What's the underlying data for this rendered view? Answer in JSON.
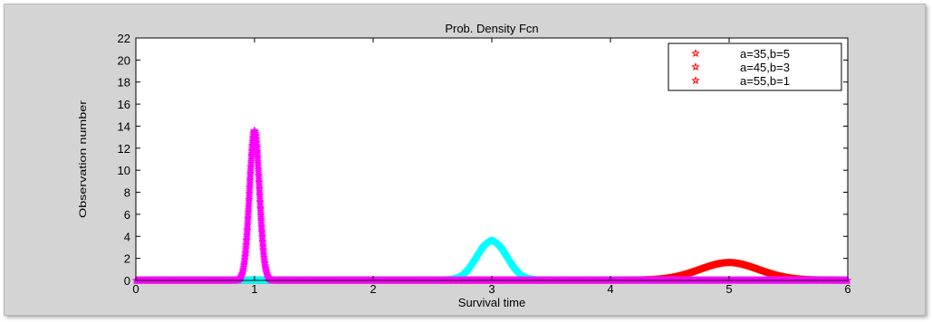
{
  "chart_data": {
    "type": "scatter",
    "title": "Prob. Density Fcn",
    "xlabel": "Survival time",
    "ylabel": "Observation number",
    "xlim": [
      0,
      6
    ],
    "ylim": [
      0,
      22
    ],
    "x_ticks": [
      0,
      1,
      2,
      3,
      4,
      5,
      6
    ],
    "y_ticks": [
      0,
      2,
      4,
      6,
      8,
      10,
      12,
      14,
      16,
      18,
      20,
      22
    ],
    "grid": false,
    "legend_placement": "top-right",
    "marker": "star",
    "series": [
      {
        "name": "a=35,b=5",
        "color": "#ff0000",
        "peak_x": 5,
        "peak_y": 1.6,
        "points": [
          [
            4.4,
            0.1
          ],
          [
            4.6,
            0.5
          ],
          [
            4.8,
            1.2
          ],
          [
            5.0,
            1.6
          ],
          [
            5.2,
            1.2
          ],
          [
            5.4,
            0.5
          ],
          [
            5.6,
            0.1
          ]
        ]
      },
      {
        "name": "a=45,b=3",
        "color": "#00ffff",
        "peak_x": 3,
        "peak_y": 3.6,
        "points": [
          [
            2.7,
            0.2
          ],
          [
            2.8,
            1.2
          ],
          [
            2.9,
            2.9
          ],
          [
            3.0,
            3.6
          ],
          [
            3.1,
            2.9
          ],
          [
            3.2,
            1.2
          ],
          [
            3.3,
            0.2
          ]
        ]
      },
      {
        "name": "a=55,b=1",
        "color": "#ff00ff",
        "peak_x": 1,
        "peak_y": 13.6,
        "points": [
          [
            0.88,
            0.2
          ],
          [
            0.92,
            2.5
          ],
          [
            0.96,
            10.0
          ],
          [
            1.0,
            13.6
          ],
          [
            1.04,
            10.0
          ],
          [
            1.08,
            2.5
          ],
          [
            1.12,
            0.2
          ]
        ]
      }
    ]
  }
}
